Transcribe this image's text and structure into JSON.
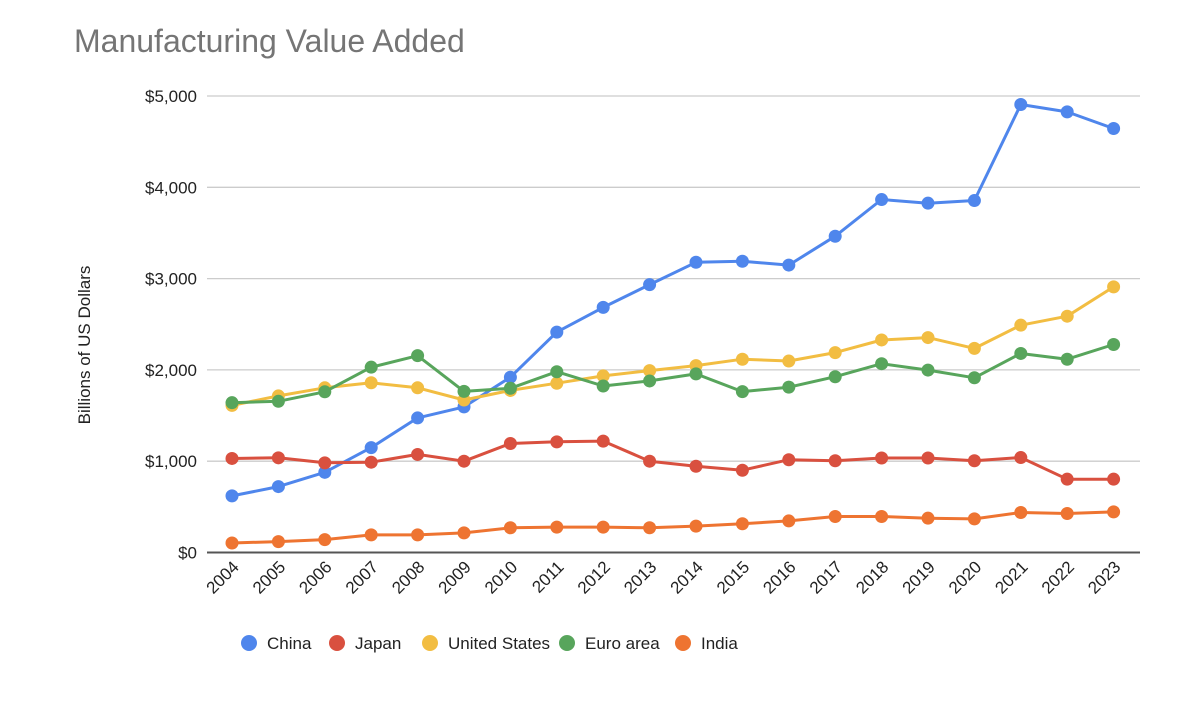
{
  "chart_data": {
    "type": "line",
    "title": "Manufacturing Value Added",
    "xlabel": "",
    "ylabel": "Billions of US Dollars",
    "ylim": [
      0,
      5000
    ],
    "yticks": [
      0,
      1000,
      2000,
      3000,
      4000,
      5000
    ],
    "ytick_labels": [
      "$0",
      "$1,000",
      "$2,000",
      "$3,000",
      "$4,000",
      "$5,000"
    ],
    "grid": true,
    "legend_position": "bottom",
    "categories": [
      "2004",
      "2005",
      "2006",
      "2007",
      "2008",
      "2009",
      "2010",
      "2011",
      "2012",
      "2013",
      "2014",
      "2015",
      "2016",
      "2017",
      "2018",
      "2019",
      "2020",
      "2021",
      "2022",
      "2023"
    ],
    "series": [
      {
        "name": "China",
        "color": "#4f86ec",
        "values": [
          620,
          722,
          878,
          1149,
          1474,
          1595,
          1920,
          2414,
          2685,
          2934,
          3179,
          3190,
          3148,
          3464,
          3866,
          3826,
          3855,
          4907,
          4826,
          4644
        ]
      },
      {
        "name": "Japan",
        "color": "#d9503f",
        "values": [
          1030,
          1037,
          982,
          989,
          1074,
          1000,
          1194,
          1212,
          1220,
          1000,
          945,
          901,
          1016,
          1005,
          1035,
          1035,
          1005,
          1040,
          803,
          803
        ]
      },
      {
        "name": "United States",
        "color": "#f2bd42",
        "values": [
          1611,
          1715,
          1804,
          1859,
          1804,
          1670,
          1775,
          1854,
          1934,
          1992,
          2047,
          2117,
          2097,
          2189,
          2328,
          2354,
          2236,
          2490,
          2588,
          2909
        ]
      },
      {
        "name": "Euro area",
        "color": "#58a55c",
        "values": [
          1641,
          1656,
          1760,
          2030,
          2156,
          1765,
          1799,
          1980,
          1824,
          1879,
          1956,
          1762,
          1811,
          1925,
          2068,
          1998,
          1914,
          2180,
          2117,
          2278
        ]
      },
      {
        "name": "India",
        "color": "#ee7431",
        "values": [
          104,
          119,
          141,
          193,
          193,
          215,
          271,
          278,
          278,
          271,
          289,
          315,
          346,
          394,
          394,
          376,
          368,
          438,
          427,
          445
        ]
      }
    ]
  }
}
